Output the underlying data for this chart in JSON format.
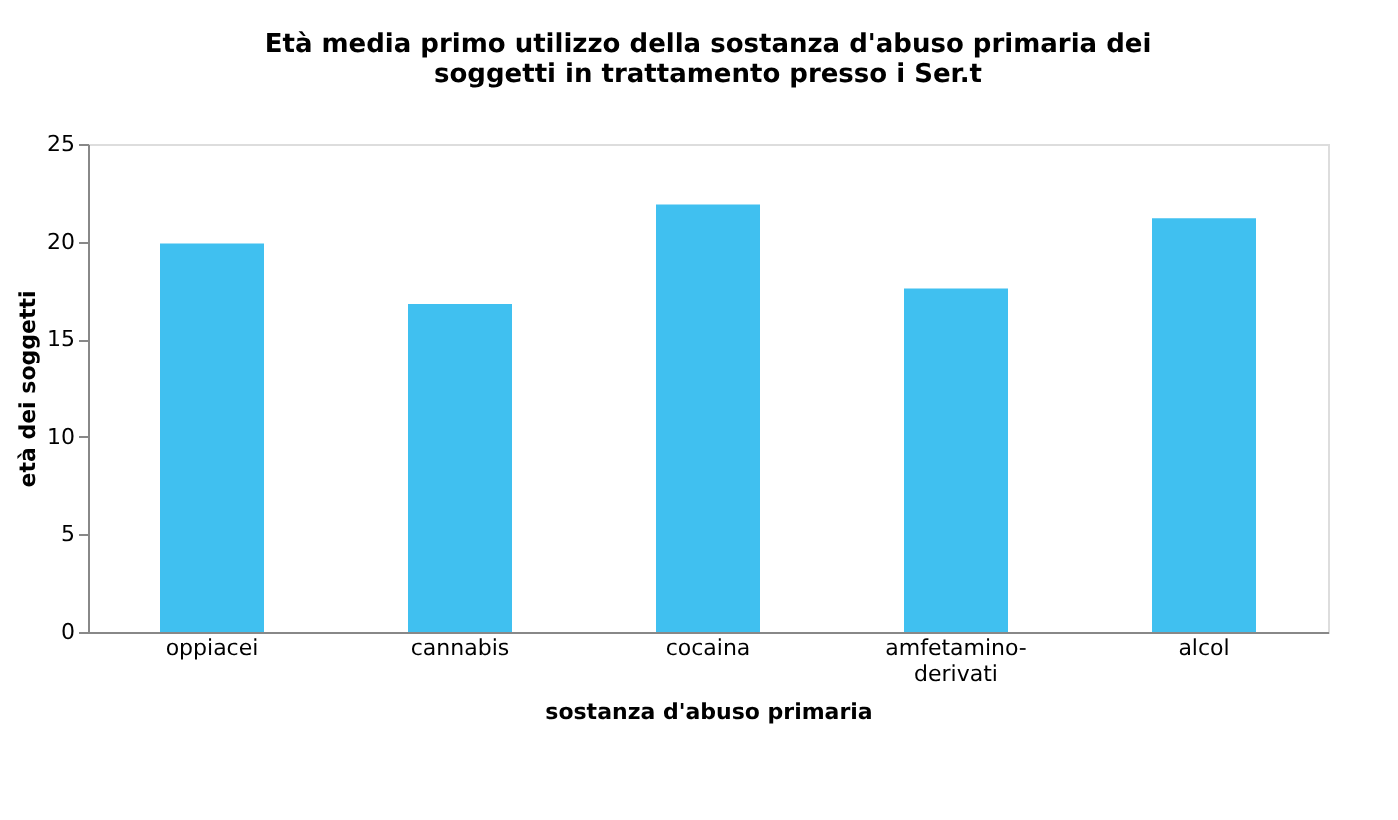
{
  "chart_data": {
    "type": "bar",
    "title": "Età media primo utilizzo della sostanza d'abuso primaria dei soggetti in trattamento presso i Ser.t",
    "xlabel": "sostanza d'abuso primaria",
    "ylabel": "età dei soggetti",
    "categories": [
      "oppiacei",
      "cannabis",
      "cocaina",
      "amfetamino-derivati",
      "alcol"
    ],
    "values": [
      19.9,
      16.8,
      21.9,
      17.6,
      21.2
    ],
    "color": "#40c0f0",
    "ylim": [
      0,
      25
    ],
    "yticks": [
      0,
      5,
      10,
      15,
      20,
      25
    ],
    "grid": false
  }
}
